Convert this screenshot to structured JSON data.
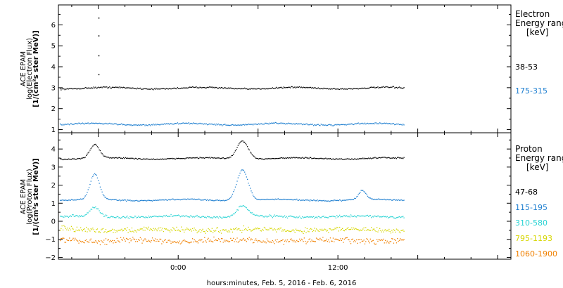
{
  "xlabel": "hours:minutes, Feb.  5, 2016 - Feb.  6, 2016",
  "x_ticks": [
    "0:00",
    "12:00"
  ],
  "x_hours_span": [
    -9,
    25
  ],
  "data_end_hours": 17.0,
  "chart_data": [
    {
      "type": "scatter",
      "ylabel": [
        "ACE EPAM",
        "log(Electron Flux)",
        "[1/(cm²s ster MeV)]"
      ],
      "legend_title": [
        "Electron",
        "Energy ranges",
        "[keV]"
      ],
      "ylim": [
        0.85,
        6.95
      ],
      "yticks": [
        1,
        2,
        3,
        4,
        5,
        6
      ],
      "series": [
        {
          "name": "38-53",
          "color": "#000000",
          "base": 3.0,
          "spike": {
            "x": -6.0,
            "values": [
              6.35,
              5.5,
              4.55,
              3.65
            ]
          }
        },
        {
          "name": "175-315",
          "color": "#1f7fd0",
          "base": 1.28
        }
      ]
    },
    {
      "type": "scatter",
      "ylabel": [
        "ACE EPAM",
        "log(Proton Flux)",
        "[1/(cm²s ster MeV)]"
      ],
      "legend_title": [
        "Proton",
        "Energy ranges",
        "[keV]"
      ],
      "ylim": [
        -2.1,
        4.9
      ],
      "yticks": [
        -2,
        -1,
        0,
        1,
        2,
        3,
        4
      ],
      "series": [
        {
          "name": "47-68",
          "color": "#000000",
          "base": 3.5,
          "peaks": [
            {
              "x": -6.3,
              "h": 0.75,
              "w": 0.5
            },
            {
              "x": 4.8,
              "h": 1.0,
              "w": 0.6
            }
          ]
        },
        {
          "name": "115-195",
          "color": "#1f7fd0",
          "base": 1.2,
          "peaks": [
            {
              "x": -6.3,
              "h": 1.4,
              "w": 0.5
            },
            {
              "x": 4.8,
              "h": 1.7,
              "w": 0.6
            },
            {
              "x": 13.8,
              "h": 0.5,
              "w": 0.4
            }
          ]
        },
        {
          "name": "310-580",
          "color": "#27d3d3",
          "base": 0.28,
          "peaks": [
            {
              "x": -6.3,
              "h": 0.5,
              "w": 0.5
            },
            {
              "x": 4.8,
              "h": 0.6,
              "w": 0.6
            }
          ]
        },
        {
          "name": "795-1193",
          "color": "#d6d600",
          "base": -0.45
        },
        {
          "name": "1060-1900",
          "color": "#f08000",
          "base": -1.05
        }
      ]
    }
  ]
}
